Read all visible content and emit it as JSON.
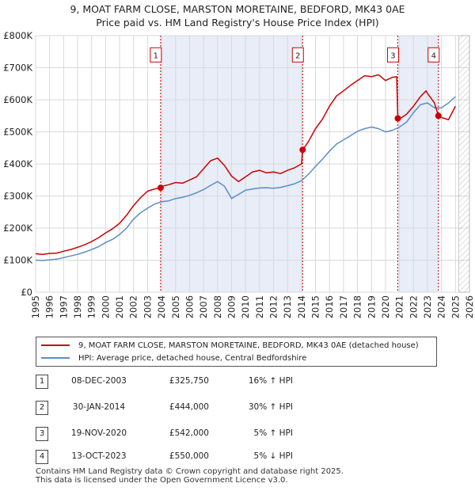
{
  "chart_data": {
    "type": "line",
    "title": "9, MOAT FARM CLOSE, MARSTON MORETAINE, BEDFORD, MK43 0AE",
    "subtitle": "Price paid vs. HM Land Registry's House Price Index (HPI)",
    "xlabel": "",
    "ylabel": "",
    "xlim": [
      1995,
      2026
    ],
    "ylim": [
      0,
      800000
    ],
    "x_ticks": [
      1995,
      1996,
      1997,
      1998,
      1999,
      2000,
      2001,
      2002,
      2003,
      2004,
      2005,
      2006,
      2007,
      2008,
      2009,
      2010,
      2011,
      2012,
      2013,
      2014,
      2015,
      2016,
      2017,
      2018,
      2019,
      2020,
      2021,
      2022,
      2023,
      2024,
      2025,
      2026
    ],
    "y_ticks": [
      {
        "value": 0,
        "label": "£0"
      },
      {
        "value": 100000,
        "label": "£100K"
      },
      {
        "value": 200000,
        "label": "£200K"
      },
      {
        "value": 300000,
        "label": "£300K"
      },
      {
        "value": 400000,
        "label": "£400K"
      },
      {
        "value": 500000,
        "label": "£500K"
      },
      {
        "value": 600000,
        "label": "£600K"
      },
      {
        "value": 700000,
        "label": "£700K"
      },
      {
        "value": 800000,
        "label": "£800K"
      }
    ],
    "grid": true,
    "future_hatch_from": 2025.25,
    "sale_highlight_ranges": [
      [
        2003.93,
        2014.08
      ],
      [
        2020.88,
        2023.78
      ]
    ],
    "series": [
      {
        "name": "9, MOAT FARM CLOSE, MARSTON MORETAINE, BEDFORD, MK43 0AE (detached house)",
        "color": "#cc0000",
        "x": [
          1995,
          1995.5,
          1996,
          1996.5,
          1997,
          1997.5,
          1998,
          1998.5,
          1999,
          1999.5,
          2000,
          2000.5,
          2001,
          2001.5,
          2002,
          2002.5,
          2003,
          2003.5,
          2003.93,
          2004,
          2004.5,
          2005,
          2005.5,
          2006,
          2006.5,
          2007,
          2007.5,
          2008,
          2008.5,
          2009,
          2009.5,
          2010,
          2010.5,
          2011,
          2011.5,
          2012,
          2012.5,
          2013,
          2013.5,
          2014,
          2014.08,
          2014.5,
          2015,
          2015.5,
          2016,
          2016.5,
          2017,
          2017.5,
          2018,
          2018.5,
          2019,
          2019.5,
          2020,
          2020.5,
          2020.8,
          2020.88,
          2021,
          2021.5,
          2022,
          2022.5,
          2022.9,
          2023,
          2023.5,
          2023.78,
          2024,
          2024.5,
          2025
        ],
        "y": [
          120000,
          118000,
          121000,
          122000,
          128000,
          133000,
          140000,
          148000,
          158000,
          170000,
          185000,
          198000,
          215000,
          240000,
          270000,
          295000,
          315000,
          322000,
          325750,
          330000,
          335000,
          342000,
          340000,
          350000,
          360000,
          385000,
          410000,
          418000,
          395000,
          362000,
          345000,
          360000,
          375000,
          380000,
          372000,
          375000,
          370000,
          380000,
          388000,
          400000,
          444000,
          470000,
          510000,
          540000,
          580000,
          612000,
          628000,
          645000,
          660000,
          675000,
          672000,
          678000,
          660000,
          670000,
          672000,
          542000,
          540000,
          555000,
          580000,
          610000,
          628000,
          620000,
          590000,
          550000,
          545000,
          538000,
          580000
        ]
      },
      {
        "name": "HPI: Average price, detached house, Central Bedfordshire",
        "color": "#5b8ec7",
        "x": [
          1995,
          1995.5,
          1996,
          1996.5,
          1997,
          1997.5,
          1998,
          1998.5,
          1999,
          1999.5,
          2000,
          2000.5,
          2001,
          2001.5,
          2002,
          2002.5,
          2003,
          2003.5,
          2004,
          2004.5,
          2005,
          2005.5,
          2006,
          2006.5,
          2007,
          2007.5,
          2008,
          2008.5,
          2009,
          2009.5,
          2010,
          2010.5,
          2011,
          2011.5,
          2012,
          2012.5,
          2013,
          2013.5,
          2014,
          2014.5,
          2015,
          2015.5,
          2016,
          2016.5,
          2017,
          2017.5,
          2018,
          2018.5,
          2019,
          2019.5,
          2020,
          2020.5,
          2021,
          2021.5,
          2022,
          2022.5,
          2023,
          2023.5,
          2024,
          2024.5,
          2025
        ],
        "y": [
          100000,
          99000,
          101000,
          103000,
          108000,
          113000,
          118000,
          125000,
          133000,
          142000,
          155000,
          165000,
          180000,
          200000,
          228000,
          248000,
          262000,
          275000,
          282000,
          285000,
          292000,
          296000,
          302000,
          310000,
          320000,
          333000,
          345000,
          330000,
          292000,
          305000,
          318000,
          322000,
          325000,
          326000,
          324000,
          327000,
          332000,
          338000,
          348000,
          368000,
          392000,
          415000,
          440000,
          462000,
          475000,
          488000,
          502000,
          510000,
          515000,
          510000,
          500000,
          505000,
          515000,
          530000,
          560000,
          585000,
          590000,
          575000,
          575000,
          590000,
          610000
        ]
      }
    ],
    "sales": [
      {
        "id": "1",
        "x": 2003.93,
        "price": 325750
      },
      {
        "id": "2",
        "x": 2014.08,
        "price": 444000
      },
      {
        "id": "3",
        "x": 2020.88,
        "price": 542000
      },
      {
        "id": "4",
        "x": 2023.78,
        "price": 550000
      }
    ],
    "marker_y": 740000
  },
  "legend": {
    "property_label": "9, MOAT FARM CLOSE, MARSTON MORETAINE, BEDFORD, MK43 0AE (detached house)",
    "hpi_label": "HPI: Average price, detached house, Central Bedfordshire"
  },
  "sales_table": [
    {
      "num": "1",
      "date": "08-DEC-2003",
      "price": "£325,750",
      "hpi": "16% ↑ HPI"
    },
    {
      "num": "2",
      "date": "30-JAN-2014",
      "price": "£444,000",
      "hpi": "30% ↑ HPI"
    },
    {
      "num": "3",
      "date": "19-NOV-2020",
      "price": "£542,000",
      "hpi": "5% ↑ HPI"
    },
    {
      "num": "4",
      "date": "13-OCT-2023",
      "price": "£550,000",
      "hpi": "5% ↓ HPI"
    }
  ],
  "footer": {
    "line1": "Contains HM Land Registry data © Crown copyright and database right 2025.",
    "line2": "This data is licensed under the Open Government Licence v3.0."
  }
}
